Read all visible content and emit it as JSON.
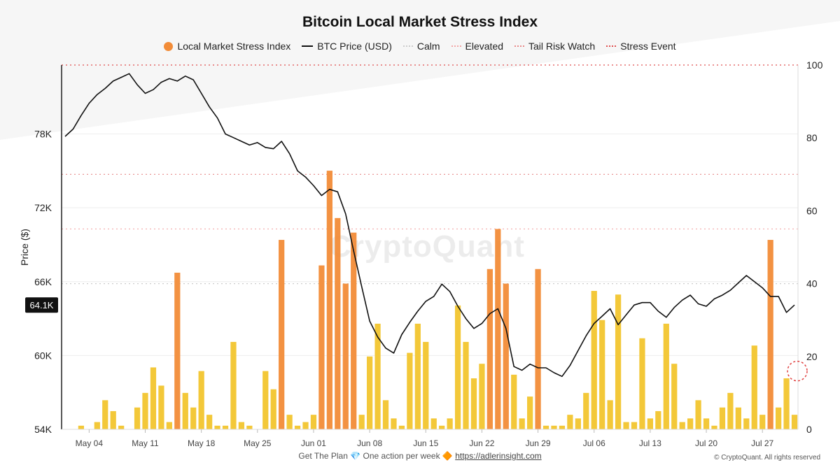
{
  "colors": {
    "stress": "#f28c38",
    "stress_low": "#f2c52e",
    "price_line": "#111111",
    "calm": "#cccccc",
    "elevated": "#f2a6a6",
    "tail_risk": "#e88a8a",
    "stress_event": "#e05050",
    "highlight_circle": "#e04040"
  },
  "footer": {
    "text_pre": "Get The Plan",
    "diamond_icon": "💎",
    "text_mid": "One action per week",
    "bullet_icon": "🔶",
    "link": "https://adlerinsight.com",
    "copyright": "© CryptoQuant. All rights reserved"
  },
  "watermark": "CryptoQuant",
  "chart_data": {
    "type": "bar+line",
    "title": "Bitcoin Local Market Stress Index",
    "ylabel_left": "Price ($)",
    "legend": [
      {
        "name": "Local Market Stress Index",
        "kind": "dot",
        "color": "#f28c38"
      },
      {
        "name": "BTC Price (USD)",
        "kind": "line",
        "color": "#111111"
      },
      {
        "name": "Calm",
        "kind": "dash",
        "color": "#cccccc"
      },
      {
        "name": "Elevated",
        "kind": "dash",
        "color": "#f2a6a6"
      },
      {
        "name": "Tail Risk Watch",
        "kind": "dash",
        "color": "#e88a8a"
      },
      {
        "name": "Stress Event",
        "kind": "dash",
        "color": "#e05050"
      }
    ],
    "price_axis": {
      "ylim": [
        54000,
        83600
      ],
      "ticks": [
        54000,
        60000,
        66000,
        72000,
        78000
      ],
      "tick_labels": [
        "54K",
        "60K",
        "66K",
        "72K",
        "78K"
      ]
    },
    "stress_axis": {
      "ylim": [
        0,
        100
      ],
      "ticks": [
        0,
        20,
        40,
        60,
        80,
        100
      ],
      "tick_labels": [
        "0",
        "20",
        "40",
        "60",
        "80",
        "100"
      ]
    },
    "x_range": [
      "2024-05-01",
      "2024-07-31"
    ],
    "x_ticks": [
      "2024-05-04",
      "2024-05-11",
      "2024-05-18",
      "2024-05-25",
      "2024-06-01",
      "2024-06-08",
      "2024-06-15",
      "2024-06-22",
      "2024-06-29",
      "2024-07-06",
      "2024-07-13",
      "2024-07-20",
      "2024-07-27"
    ],
    "x_tick_labels": [
      "May 04",
      "May 11",
      "May 18",
      "May 25",
      "Jun 01",
      "Jun 08",
      "Jun 15",
      "Jun 22",
      "Jun 29",
      "Jul 06",
      "Jul 13",
      "Jul 20",
      "Jul 27"
    ],
    "threshold_lines": [
      {
        "name": "Stress Event",
        "value": 100
      },
      {
        "name": "Tail Risk Watch",
        "value": 70
      },
      {
        "name": "Elevated",
        "value": 55
      },
      {
        "name": "Calm",
        "value": 40
      }
    ],
    "current_price_label": "64.1K",
    "price_series": {
      "name": "BTC Price (USD)",
      "x": [
        "2024-05-01",
        "2024-05-02",
        "2024-05-03",
        "2024-05-04",
        "2024-05-05",
        "2024-05-06",
        "2024-05-07",
        "2024-05-08",
        "2024-05-09",
        "2024-05-10",
        "2024-05-11",
        "2024-05-12",
        "2024-05-13",
        "2024-05-14",
        "2024-05-15",
        "2024-05-16",
        "2024-05-17",
        "2024-05-18",
        "2024-05-19",
        "2024-05-20",
        "2024-05-21",
        "2024-05-22",
        "2024-05-23",
        "2024-05-24",
        "2024-05-25",
        "2024-05-26",
        "2024-05-27",
        "2024-05-28",
        "2024-05-29",
        "2024-05-30",
        "2024-05-31",
        "2024-06-01",
        "2024-06-02",
        "2024-06-03",
        "2024-06-04",
        "2024-06-05",
        "2024-06-06",
        "2024-06-07",
        "2024-06-08",
        "2024-06-09",
        "2024-06-10",
        "2024-06-11",
        "2024-06-12",
        "2024-06-13",
        "2024-06-14",
        "2024-06-15",
        "2024-06-16",
        "2024-06-17",
        "2024-06-18",
        "2024-06-19",
        "2024-06-20",
        "2024-06-21",
        "2024-06-22",
        "2024-06-23",
        "2024-06-24",
        "2024-06-25",
        "2024-06-26",
        "2024-06-27",
        "2024-06-28",
        "2024-06-29",
        "2024-06-30",
        "2024-07-01",
        "2024-07-02",
        "2024-07-03",
        "2024-07-04",
        "2024-07-05",
        "2024-07-06",
        "2024-07-07",
        "2024-07-08",
        "2024-07-09",
        "2024-07-10",
        "2024-07-11",
        "2024-07-12",
        "2024-07-13",
        "2024-07-14",
        "2024-07-15",
        "2024-07-16",
        "2024-07-17",
        "2024-07-18",
        "2024-07-19",
        "2024-07-20",
        "2024-07-21",
        "2024-07-22",
        "2024-07-23",
        "2024-07-24",
        "2024-07-25",
        "2024-07-26",
        "2024-07-27",
        "2024-07-28",
        "2024-07-29",
        "2024-07-30",
        "2024-07-31"
      ],
      "values": [
        77800,
        78400,
        79500,
        80500,
        81200,
        81700,
        82300,
        82600,
        82900,
        82000,
        81300,
        81600,
        82200,
        82500,
        82300,
        82700,
        82400,
        81300,
        80200,
        79300,
        78000,
        77700,
        77400,
        77100,
        77300,
        76900,
        76800,
        77400,
        76400,
        75000,
        74500,
        73800,
        73000,
        73500,
        73300,
        71500,
        68500,
        65600,
        62800,
        61500,
        60600,
        60200,
        61700,
        62700,
        63600,
        64400,
        64800,
        65800,
        65200,
        64000,
        63000,
        62200,
        62600,
        63400,
        63800,
        62200,
        59100,
        58800,
        59300,
        59000,
        59000,
        58600,
        58300,
        59200,
        60400,
        61600,
        62600,
        63200,
        63800,
        62500,
        63300,
        64100,
        64300,
        64300,
        63600,
        63100,
        63900,
        64500,
        64900,
        64200,
        64000,
        64600,
        64900,
        65300,
        65900,
        66500,
        66000,
        65500,
        64800,
        64800,
        63500,
        64100
      ]
    },
    "stress_series": {
      "name": "Local Market Stress Index",
      "x": [
        "2024-05-01",
        "2024-05-02",
        "2024-05-03",
        "2024-05-04",
        "2024-05-05",
        "2024-05-06",
        "2024-05-07",
        "2024-05-08",
        "2024-05-09",
        "2024-05-10",
        "2024-05-11",
        "2024-05-12",
        "2024-05-13",
        "2024-05-14",
        "2024-05-15",
        "2024-05-16",
        "2024-05-17",
        "2024-05-18",
        "2024-05-19",
        "2024-05-20",
        "2024-05-21",
        "2024-05-22",
        "2024-05-23",
        "2024-05-24",
        "2024-05-25",
        "2024-05-26",
        "2024-05-27",
        "2024-05-28",
        "2024-05-29",
        "2024-05-30",
        "2024-05-31",
        "2024-06-01",
        "2024-06-02",
        "2024-06-03",
        "2024-06-04",
        "2024-06-05",
        "2024-06-06",
        "2024-06-07",
        "2024-06-08",
        "2024-06-09",
        "2024-06-10",
        "2024-06-11",
        "2024-06-12",
        "2024-06-13",
        "2024-06-14",
        "2024-06-15",
        "2024-06-16",
        "2024-06-17",
        "2024-06-18",
        "2024-06-19",
        "2024-06-20",
        "2024-06-21",
        "2024-06-22",
        "2024-06-23",
        "2024-06-24",
        "2024-06-25",
        "2024-06-26",
        "2024-06-27",
        "2024-06-28",
        "2024-06-29",
        "2024-06-30",
        "2024-07-01",
        "2024-07-02",
        "2024-07-03",
        "2024-07-04",
        "2024-07-05",
        "2024-07-06",
        "2024-07-07",
        "2024-07-08",
        "2024-07-09",
        "2024-07-10",
        "2024-07-11",
        "2024-07-12",
        "2024-07-13",
        "2024-07-14",
        "2024-07-15",
        "2024-07-16",
        "2024-07-17",
        "2024-07-18",
        "2024-07-19",
        "2024-07-20",
        "2024-07-21",
        "2024-07-22",
        "2024-07-23",
        "2024-07-24",
        "2024-07-25",
        "2024-07-26",
        "2024-07-27",
        "2024-07-28",
        "2024-07-29",
        "2024-07-30",
        "2024-07-31"
      ],
      "values": [
        0,
        0,
        1,
        0,
        2,
        8,
        5,
        1,
        0,
        6,
        10,
        17,
        12,
        2,
        43,
        10,
        6,
        16,
        4,
        1,
        1,
        24,
        2,
        1,
        0,
        16,
        11,
        52,
        4,
        1,
        2,
        4,
        45,
        71,
        58,
        40,
        54,
        4,
        20,
        29,
        8,
        3,
        1,
        21,
        29,
        24,
        3,
        1,
        3,
        34,
        24,
        14,
        18,
        44,
        55,
        40,
        15,
        3,
        9,
        44,
        1,
        1,
        1,
        4,
        3,
        10,
        38,
        30,
        8,
        37,
        2,
        2,
        25,
        3,
        5,
        29,
        18,
        2,
        3,
        8,
        3,
        1,
        6,
        10,
        6,
        3,
        23,
        4,
        52,
        6,
        14,
        4
      ]
    }
  }
}
